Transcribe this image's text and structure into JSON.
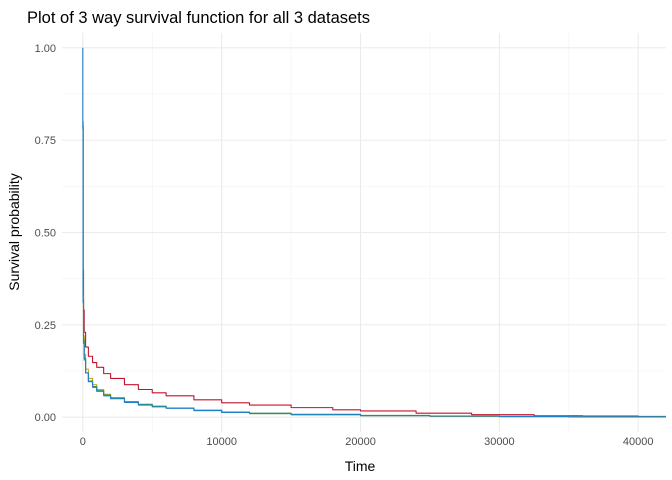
{
  "chart_data": {
    "type": "line",
    "title": "Plot of 3 way survival function for all 3 datasets",
    "xlabel": "Time",
    "ylabel": "Survival probability",
    "xlim": [
      -1500,
      42000
    ],
    "ylim": [
      -0.04,
      1.04
    ],
    "x_ticks": [
      0,
      10000,
      20000,
      30000,
      40000
    ],
    "x_tick_labels": [
      "0",
      "10000",
      "20000",
      "30000",
      "40000"
    ],
    "y_ticks": [
      0,
      0.25,
      0.5,
      0.75,
      1
    ],
    "y_tick_labels": [
      "0.00",
      "0.25",
      "0.50",
      "0.75",
      "1.00"
    ],
    "grid": true,
    "legend": "none",
    "series": [
      {
        "color": "#c0142e",
        "x": [
          0,
          20,
          50,
          100,
          200,
          400,
          700,
          1000,
          1500,
          2000,
          3000,
          4000,
          5000,
          6000,
          8000,
          10000,
          12000,
          15000,
          18000,
          20000,
          24000,
          28000,
          32500,
          36000,
          40000,
          42000
        ],
        "y": [
          0.79,
          0.4,
          0.29,
          0.23,
          0.19,
          0.165,
          0.148,
          0.135,
          0.118,
          0.105,
          0.088,
          0.075,
          0.066,
          0.058,
          0.047,
          0.039,
          0.033,
          0.026,
          0.02,
          0.017,
          0.011,
          0.007,
          0.004,
          0.003,
          0.002,
          0.002
        ]
      },
      {
        "color": "#d4a017",
        "x": [
          0,
          20,
          50,
          100,
          200,
          400,
          700,
          1000,
          1500,
          2000,
          3000,
          4000,
          5000,
          6000,
          8000,
          10000,
          12000,
          15000,
          20000,
          25000,
          30000,
          35000,
          40000,
          42000
        ],
        "y": [
          0.73,
          0.33,
          0.22,
          0.17,
          0.13,
          0.105,
          0.088,
          0.075,
          0.062,
          0.053,
          0.041,
          0.034,
          0.029,
          0.025,
          0.018,
          0.013,
          0.01,
          0.007,
          0.004,
          0.002,
          0.001,
          0.001,
          0.001,
          0.001
        ]
      },
      {
        "color": "#2e9b4f",
        "x": [
          0,
          20,
          50,
          100,
          200,
          400,
          700,
          1000,
          1500,
          2000,
          3000,
          4000,
          5000,
          6000,
          8000,
          10000,
          12000,
          15000,
          20000,
          25000,
          30000,
          35000,
          40000,
          42000
        ],
        "y": [
          0.8,
          0.32,
          0.21,
          0.16,
          0.12,
          0.098,
          0.083,
          0.072,
          0.06,
          0.052,
          0.042,
          0.035,
          0.03,
          0.025,
          0.019,
          0.014,
          0.011,
          0.008,
          0.005,
          0.003,
          0.002,
          0.001,
          0.001,
          0.001
        ]
      },
      {
        "color": "#1f7fc8",
        "x": [
          0,
          0,
          20,
          50,
          100,
          200,
          400,
          700,
          1000,
          1500,
          2000,
          3000,
          4000,
          5000,
          6000,
          8000,
          10000,
          12000,
          15000,
          20000,
          25000,
          30000,
          35000,
          40000,
          42000
        ],
        "y": [
          1.0,
          0.78,
          0.31,
          0.2,
          0.155,
          0.12,
          0.096,
          0.081,
          0.07,
          0.058,
          0.05,
          0.04,
          0.033,
          0.028,
          0.024,
          0.018,
          0.013,
          0.01,
          0.007,
          0.004,
          0.003,
          0.002,
          0.001,
          0.001,
          0.001
        ]
      }
    ]
  }
}
